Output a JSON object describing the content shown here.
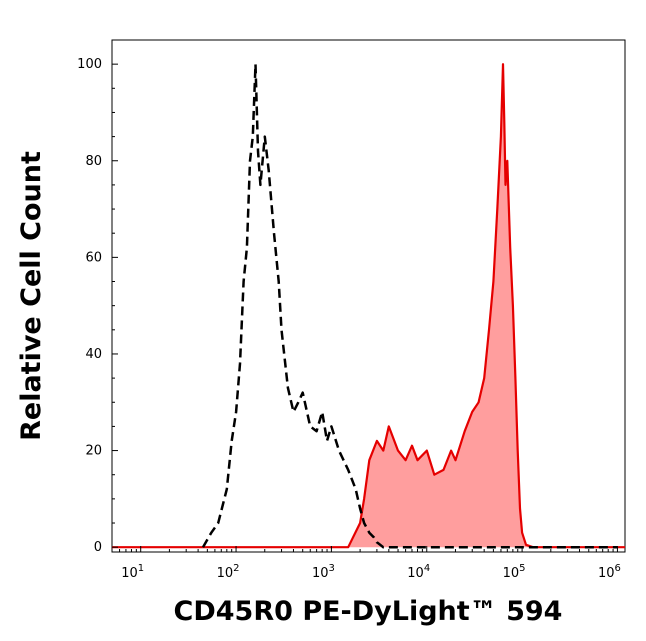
{
  "chart_data": {
    "type": "area",
    "title": "",
    "xlabel": "CD45R0 PE-DyLight™ 594",
    "ylabel": "Relative Cell Count",
    "x_scale": "log",
    "xlim": [
      5,
      1200000
    ],
    "ylim": [
      -1,
      105
    ],
    "x_ticks": [
      {
        "value": 10,
        "base": "10",
        "exp": "1"
      },
      {
        "value": 100,
        "base": "10",
        "exp": "2"
      },
      {
        "value": 1000,
        "base": "10",
        "exp": "3"
      },
      {
        "value": 10000,
        "base": "10",
        "exp": "4"
      },
      {
        "value": 100000,
        "base": "10",
        "exp": "5"
      },
      {
        "value": 1000000,
        "base": "10",
        "exp": "6"
      }
    ],
    "y_ticks": [
      "0",
      "20",
      "40",
      "60",
      "80",
      "100"
    ],
    "grid": false,
    "legend": "none",
    "series": [
      {
        "style": "dashed",
        "color": "#000000",
        "fill": "none",
        "x": [
          45,
          55,
          65,
          80,
          90,
          100,
          110,
          120,
          130,
          140,
          150,
          160,
          170,
          180,
          200,
          220,
          250,
          280,
          300,
          350,
          400,
          450,
          500,
          600,
          700,
          800,
          900,
          1000,
          1200,
          1500,
          1800,
          2000,
          2200,
          2500,
          2800,
          3000,
          3500,
          5000,
          10000,
          20000,
          50000,
          100000,
          1000000
        ],
        "y": [
          0,
          3,
          5,
          12,
          22,
          28,
          38,
          55,
          62,
          80,
          85,
          100,
          82,
          75,
          85,
          78,
          65,
          55,
          45,
          33,
          28,
          30,
          32,
          25,
          24,
          28,
          22,
          25,
          20,
          16,
          12,
          8,
          5,
          3,
          2,
          1,
          0,
          0,
          0,
          0,
          0,
          0,
          0
        ]
      },
      {
        "style": "solid",
        "color": "#e50000",
        "fill": "#ff9e9e",
        "x": [
          5,
          1500,
          2000,
          2200,
          2500,
          3000,
          3500,
          4000,
          5000,
          6000,
          7000,
          8000,
          10000,
          12000,
          15000,
          18000,
          20000,
          25000,
          30000,
          35000,
          40000,
          45000,
          50000,
          55000,
          60000,
          63000,
          65000,
          67000,
          70000,
          75000,
          80000,
          85000,
          90000,
          95000,
          100000,
          110000,
          130000,
          200000,
          1200000
        ],
        "y": [
          0,
          0,
          5,
          10,
          18,
          22,
          20,
          25,
          20,
          18,
          21,
          18,
          20,
          15,
          16,
          20,
          18,
          24,
          28,
          30,
          35,
          45,
          55,
          70,
          85,
          100,
          88,
          75,
          80,
          62,
          50,
          35,
          20,
          8,
          3,
          0.5,
          0,
          0,
          0
        ]
      }
    ]
  }
}
